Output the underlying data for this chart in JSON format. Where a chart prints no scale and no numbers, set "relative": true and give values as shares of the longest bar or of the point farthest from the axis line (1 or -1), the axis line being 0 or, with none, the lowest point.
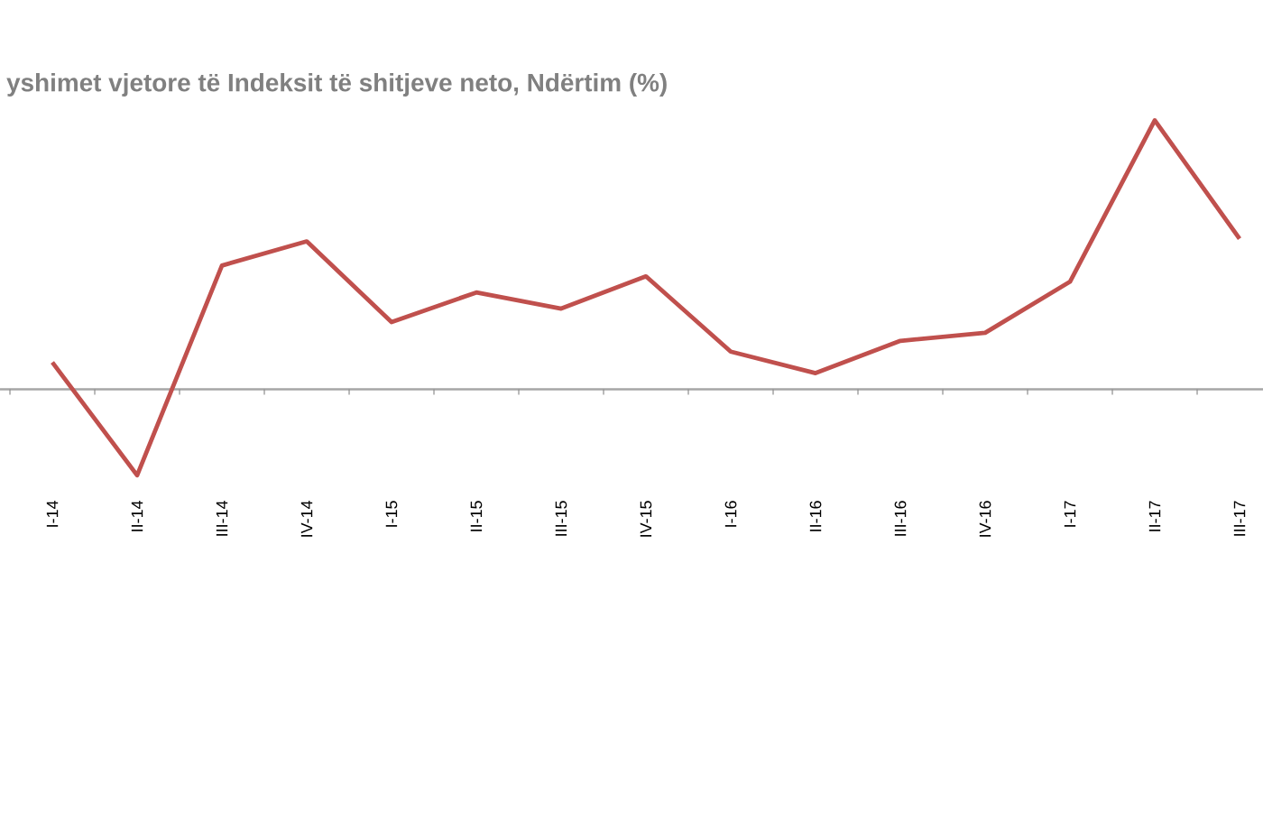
{
  "chart_data": {
    "type": "line",
    "title": "yshimet vjetore të Indeksit të shitjeve neto, Ndërtim (%)",
    "categories": [
      "I-14",
      "II-14",
      "III-14",
      "IV-14",
      "I-15",
      "II-15",
      "III-15",
      "IV-15",
      "I-16",
      "II-16",
      "III-16",
      "IV-16",
      "I-17",
      "II-17",
      "III-17"
    ],
    "values": [
      0.1,
      -0.32,
      0.46,
      0.55,
      0.25,
      0.36,
      0.3,
      0.42,
      0.14,
      0.06,
      0.18,
      0.21,
      0.4,
      1,
      0.56
    ],
    "color": "#c0504d",
    "relative": true
  }
}
